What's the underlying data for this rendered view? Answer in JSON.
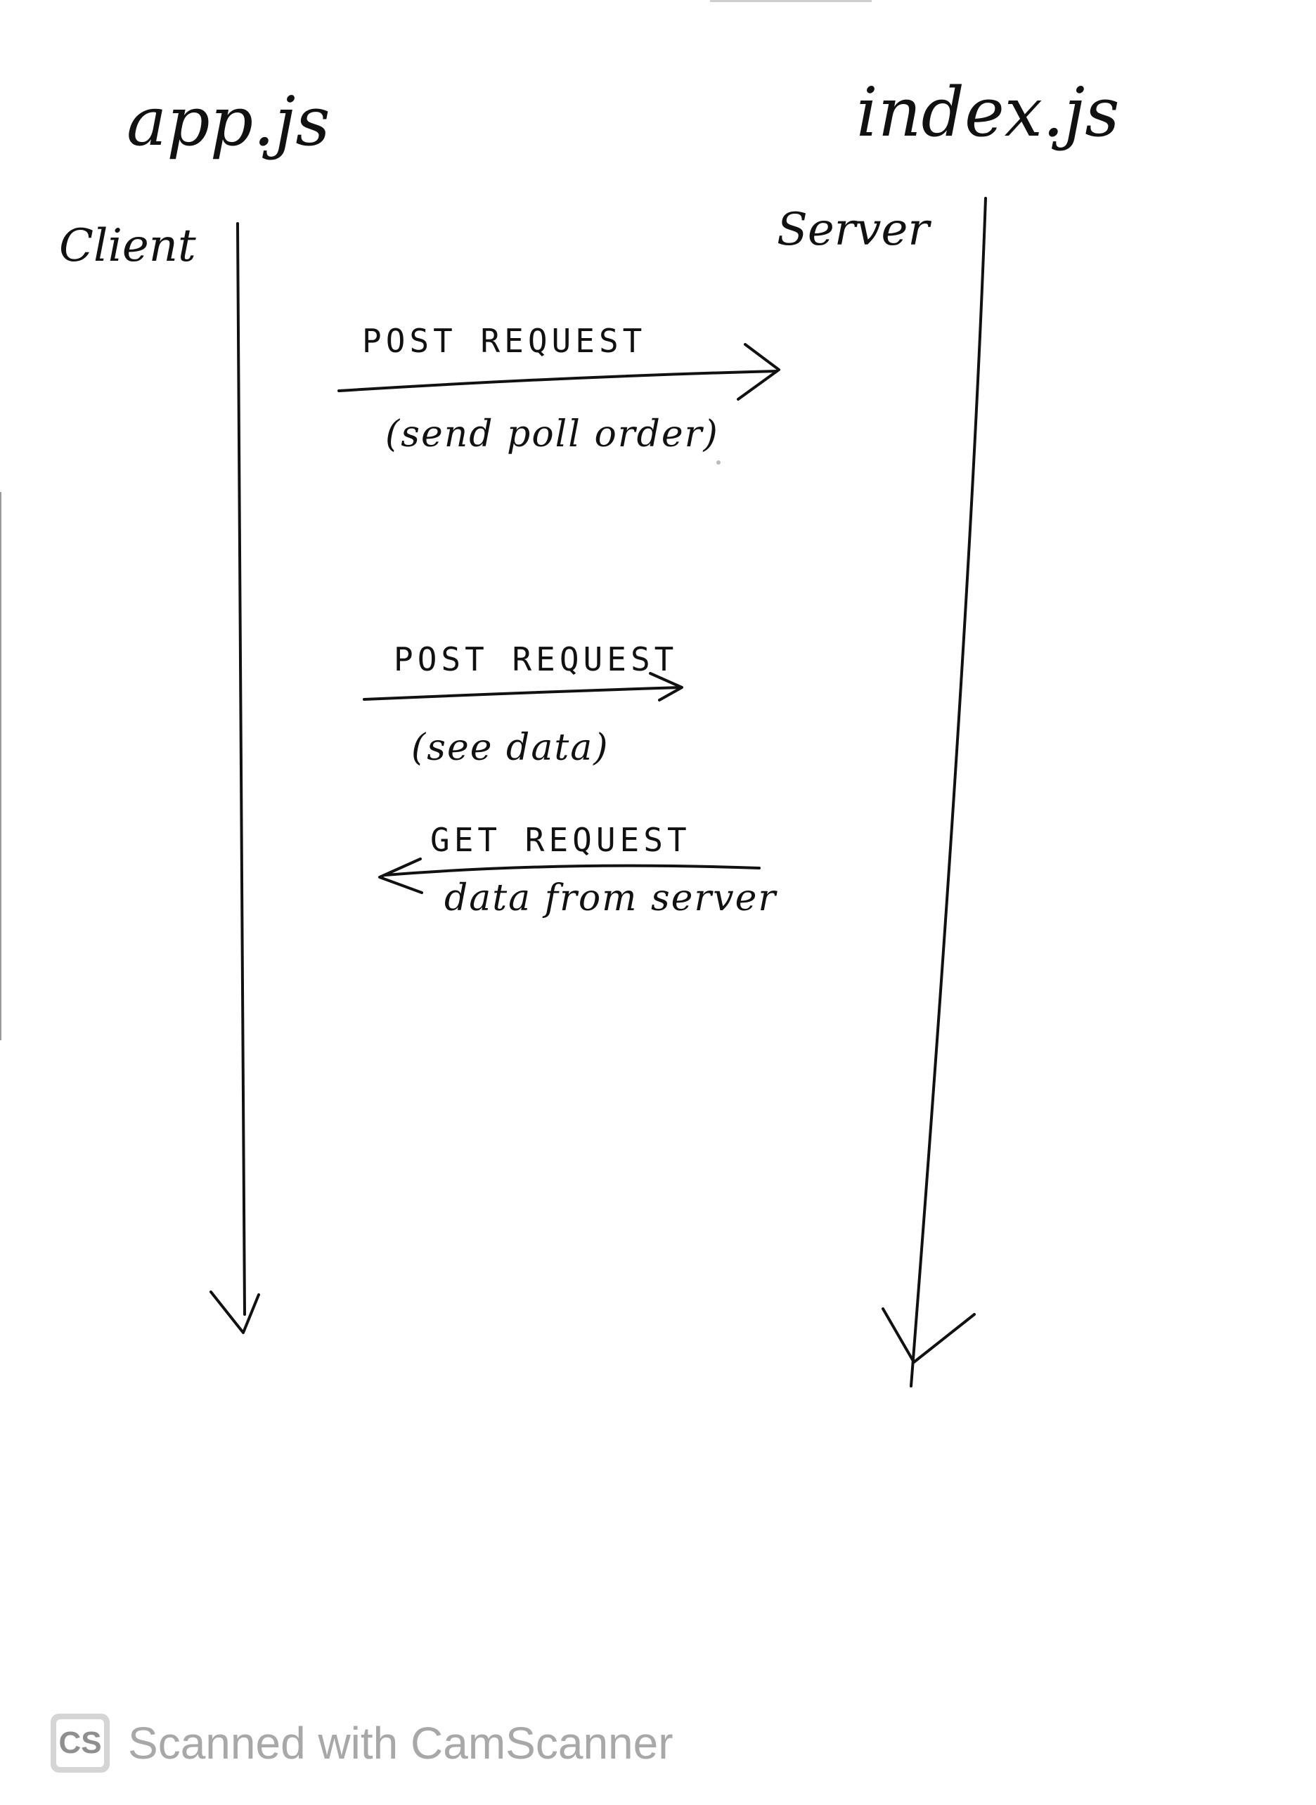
{
  "lifelines": [
    {
      "file": "app.js",
      "role": "Client"
    },
    {
      "file": "index.js",
      "role": "Server"
    }
  ],
  "messages": [
    {
      "label": "POST REQUEST",
      "note": "(send poll order)",
      "direction": "client-to-server"
    },
    {
      "label": "POST REQUEST",
      "note": "(see data)",
      "direction": "client-to-server"
    },
    {
      "label": "GET REQUEST",
      "note": "data from server",
      "direction": "server-to-client"
    }
  ],
  "watermark": {
    "logo": "CS",
    "text": "Scanned with CamScanner"
  }
}
